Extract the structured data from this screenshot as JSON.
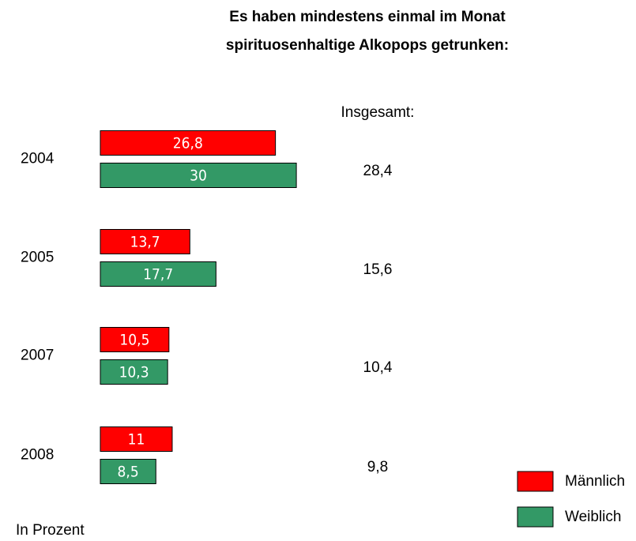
{
  "chart_data": {
    "type": "bar",
    "orientation": "horizontal",
    "title": [
      "Es haben mindestens einmal im Monat",
      "spirituosenhaltige Alkopops getrunken:"
    ],
    "categories": [
      "2004",
      "2005",
      "2007",
      "2008"
    ],
    "series": [
      {
        "name": "Männlich",
        "color": "#ff0000",
        "values": [
          26.8,
          13.7,
          10.5,
          11
        ],
        "value_labels": [
          "26,8",
          "13,7",
          "10,5",
          "11"
        ]
      },
      {
        "name": "Weiblich",
        "color": "#339966",
        "values": [
          30,
          17.7,
          10.3,
          8.5
        ],
        "value_labels": [
          "30",
          "17,7",
          "10,3",
          "8,5"
        ]
      }
    ],
    "totals": {
      "label": "Insgesamt:",
      "values": [
        28.4,
        15.6,
        10.4,
        9.8
      ],
      "value_labels": [
        "28,4",
        "15,6",
        "10,4",
        "9,8"
      ]
    },
    "note": "In Prozent"
  }
}
